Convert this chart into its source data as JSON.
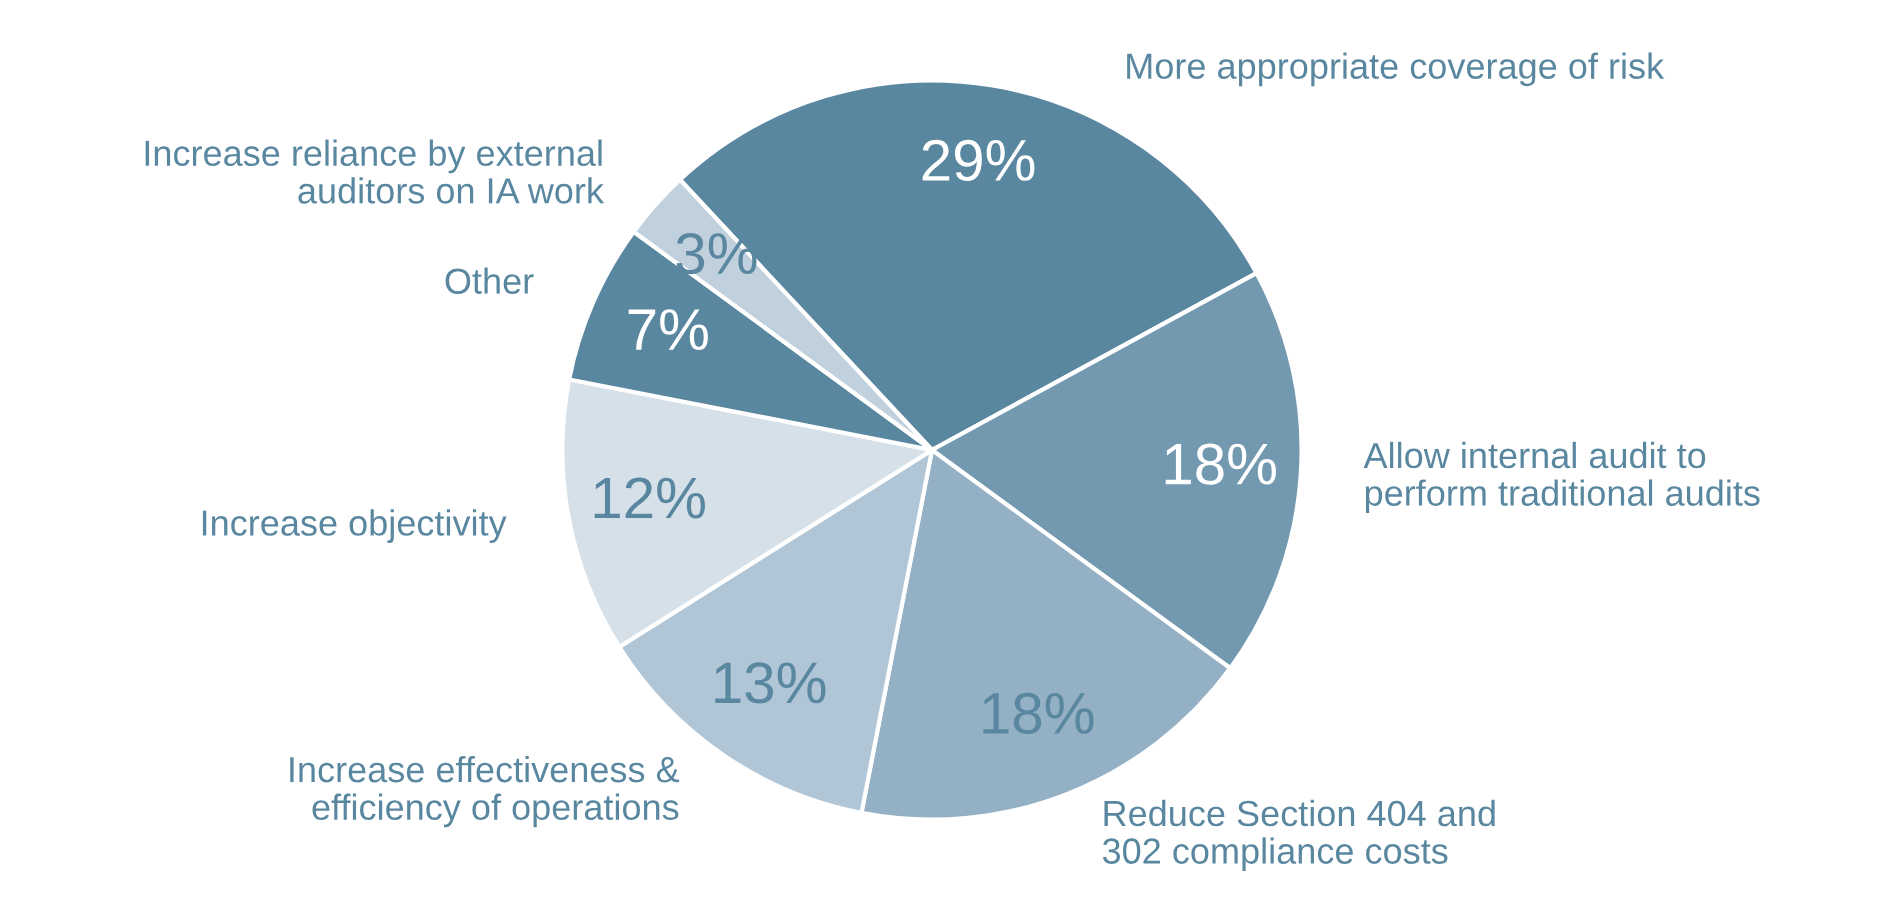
{
  "chart_data": {
    "type": "pie",
    "categories": [
      "More appropriate coverage of risk",
      "Allow internal audit to\nperform traditional audits",
      "Reduce Section 404 and\n302 compliance costs",
      "Increase effectiveness &\nefficiency of operations",
      "Increase objectivity",
      "Other",
      "Increase reliance by external\nauditors on IA work"
    ],
    "values": [
      29,
      18,
      18,
      13,
      12,
      7,
      3
    ],
    "value_labels": [
      "29%",
      "18%",
      "18%",
      "13%",
      "12%",
      "7%",
      "3%"
    ],
    "colors": [
      "#5a87a0",
      "#7399b0",
      "#94b0c4",
      "#b0c5d5",
      "#d5e0e8",
      "#5a87a0",
      "#c0d0dc"
    ]
  }
}
